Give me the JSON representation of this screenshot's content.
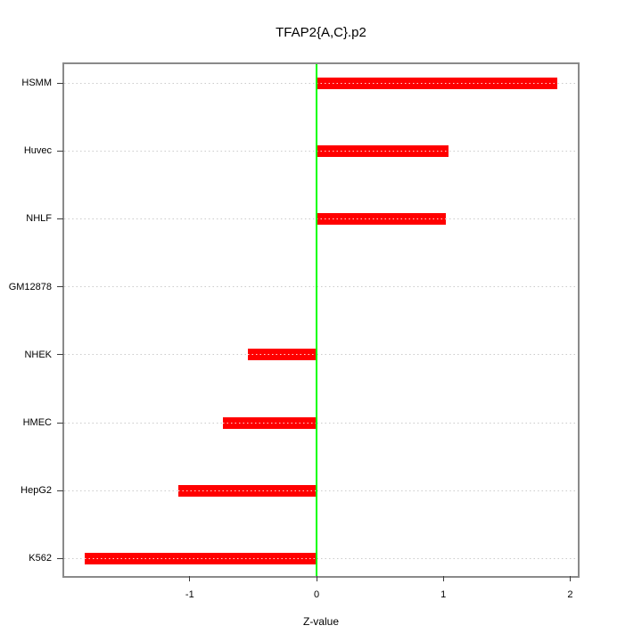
{
  "chart_data": {
    "type": "bar",
    "orientation": "horizontal",
    "title": "TFAP2{A,C}.p2",
    "xlabel": "Z-value",
    "categories": [
      "HSMM",
      "Huvec",
      "NHLF",
      "GM12878",
      "NHEK",
      "HMEC",
      "HepG2",
      "K562"
    ],
    "values": [
      1.9,
      1.04,
      1.02,
      0.0,
      -0.54,
      -0.74,
      -1.09,
      -1.83
    ],
    "x_ticks": [
      -1,
      0,
      1,
      2
    ],
    "xlim": [
      -1.99,
      2.06
    ],
    "reference_line_x": 0,
    "grid": "dotted-horizontal-per-category",
    "legend_position": "none",
    "colors": {
      "bar_fill": "#FF0000",
      "bar_center_dots": "#FFFFFF",
      "reference_line": "#00FF00",
      "gridline": "#CBCBCB",
      "box_border": "#8A8A8A",
      "text": "#000000",
      "background": "#FFFFFF"
    }
  }
}
